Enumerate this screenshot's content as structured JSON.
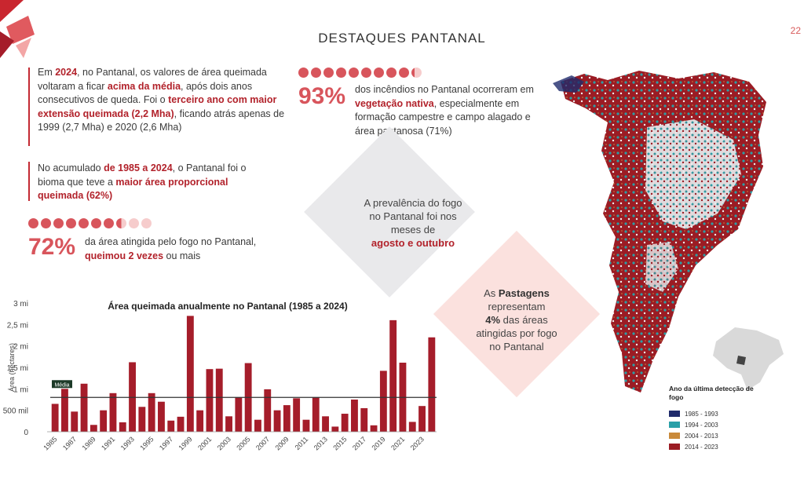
{
  "header": {
    "title": "DESTAQUES PANTANAL",
    "page_number": "22"
  },
  "text_blocks": {
    "b1": {
      "p1": "Em ",
      "r1": "2024",
      "p2": ", no Pantanal, os valores de área queimada voltaram a ficar ",
      "r2": "acima da média",
      "p3": ", após dois anos consecutivos de queda. Foi o ",
      "r3": "terceiro ano com maior extensão queimada (2,2 Mha)",
      "p4": ", ficando atrás apenas de 1999 (2,7 Mha) e 2020 (2,6 Mha)"
    },
    "b2": {
      "p1": "No acumulado ",
      "r1": "de 1985 a 2024",
      "p2": ", o Pantanal foi o bioma que teve a ",
      "r2": "maior área proporcional queimada (62%)"
    }
  },
  "stat_93": {
    "value": "93%",
    "p1": "dos incêndios no Pantanal ocorreram em ",
    "r1": "vegetação nativa",
    "p2": ", especialmente em formação campestre e campo alagado e área pantanosa (71%)"
  },
  "stat_72": {
    "value": "72%",
    "p1": "da área atingida pelo fogo no Pantanal, ",
    "r1": "queimou 2 vezes",
    "p2": " ou mais"
  },
  "diamond_1": {
    "p1": "A prevalência do fogo no Pantanal foi nos meses de",
    "r1": "agosto e outubro"
  },
  "diamond_2": {
    "r1": "Pastagens",
    "p0": "As",
    "p1": "representam",
    "r2": "4%",
    "p2": "das áreas atingidas por fogo no Pantanal"
  },
  "map_legend": {
    "title": "Ano da última detecção de fogo",
    "items": [
      {
        "label": "1985 - 1993",
        "color": "#1f2a6b"
      },
      {
        "label": "1994 - 2003",
        "color": "#2aa0a8"
      },
      {
        "label": "2004 - 2013",
        "color": "#c98a3a"
      },
      {
        "label": "2014 - 2023",
        "color": "#9b1c24"
      }
    ]
  },
  "colors": {
    "accent": "#b2222b",
    "bar": "#a51d2a",
    "mean_line": "#333333",
    "light_pink": "#fbe1de",
    "light_gray": "#e9e9eb"
  },
  "chart_data": {
    "type": "bar",
    "title": "Área queimada anualmente no Pantanal (1985 a 2024)",
    "ylabel": "Área (hectares)",
    "ylim": [
      0,
      3000000
    ],
    "y_tick_labels": [
      "0",
      "500 mil",
      "1 mi",
      "1,5 mi",
      "2 mi",
      "2,5 mi",
      "3 mi"
    ],
    "mean_label": "Média",
    "mean_value": 800000,
    "x": [
      1985,
      1986,
      1987,
      1988,
      1989,
      1990,
      1991,
      1992,
      1993,
      1994,
      1995,
      1996,
      1997,
      1998,
      1999,
      2000,
      2001,
      2002,
      2003,
      2004,
      2005,
      2006,
      2007,
      2008,
      2009,
      2010,
      2011,
      2012,
      2013,
      2014,
      2015,
      2016,
      2017,
      2018,
      2019,
      2020,
      2021,
      2022,
      2023,
      2024
    ],
    "x_tick_labels": [
      "1985",
      "1987",
      "1989",
      "1991",
      "1993",
      "1995",
      "1997",
      "1999",
      "2001",
      "2003",
      "2005",
      "2007",
      "2009",
      "2011",
      "2013",
      "2015",
      "2017",
      "2019",
      "2021",
      "2023"
    ],
    "values": [
      650000,
      1000000,
      470000,
      1120000,
      160000,
      500000,
      900000,
      220000,
      1620000,
      580000,
      900000,
      700000,
      260000,
      350000,
      2700000,
      500000,
      1460000,
      1470000,
      360000,
      800000,
      1600000,
      280000,
      990000,
      500000,
      620000,
      780000,
      280000,
      800000,
      360000,
      120000,
      420000,
      750000,
      550000,
      150000,
      1420000,
      2600000,
      1610000,
      230000,
      600000,
      2200000
    ]
  }
}
